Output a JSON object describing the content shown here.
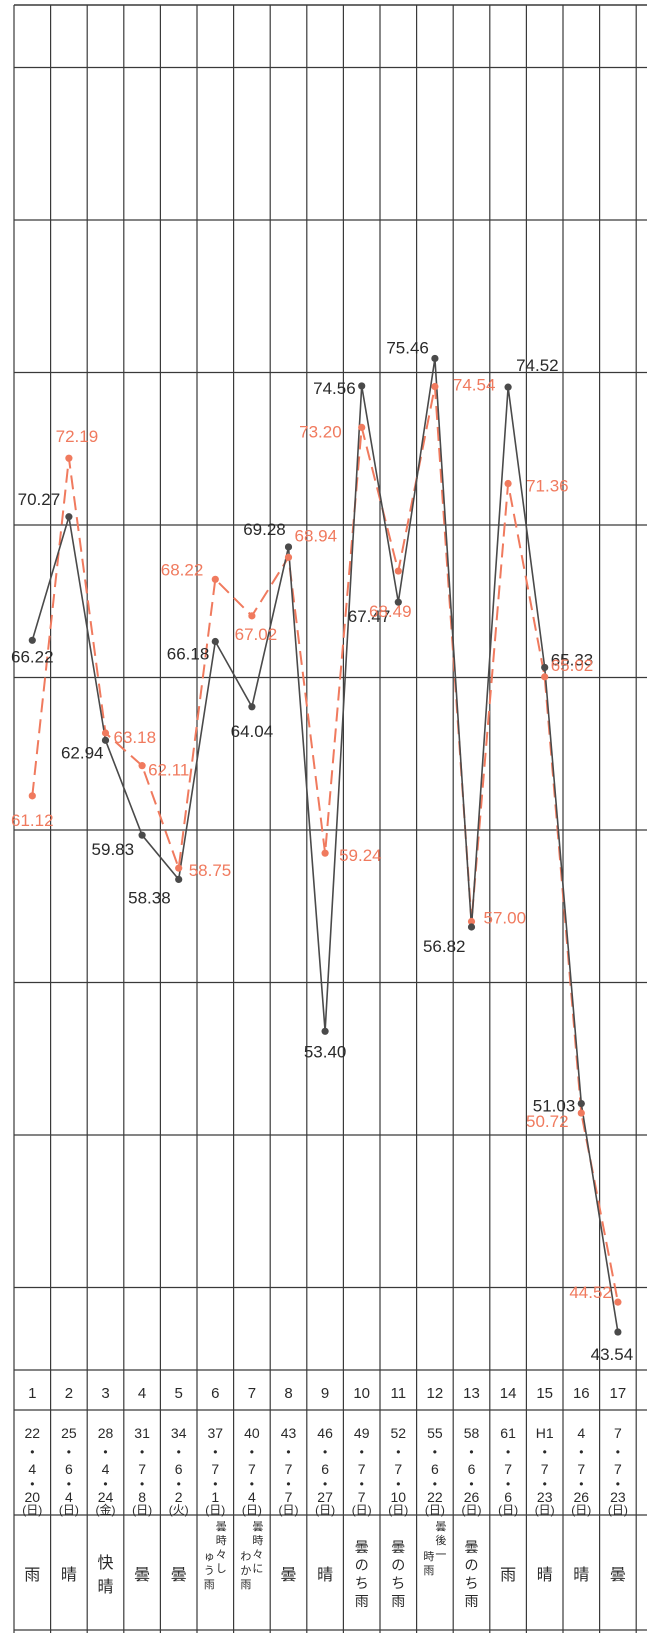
{
  "chart_data": {
    "type": "line",
    "categories": [
      "1",
      "2",
      "3",
      "4",
      "5",
      "6",
      "7",
      "8",
      "9",
      "10",
      "11",
      "12",
      "13",
      "14",
      "15",
      "16",
      "17"
    ],
    "dates": [
      [
        "22",
        "4",
        "20",
        "(日)"
      ],
      [
        "25",
        "6",
        "4",
        "(日)"
      ],
      [
        "28",
        "4",
        "24",
        "(金)"
      ],
      [
        "31",
        "7",
        "8",
        "(日)"
      ],
      [
        "34",
        "6",
        "2",
        "(火)"
      ],
      [
        "37",
        "7",
        "1",
        "(日)"
      ],
      [
        "40",
        "7",
        "4",
        "(日)"
      ],
      [
        "43",
        "7",
        "7",
        "(日)"
      ],
      [
        "46",
        "6",
        "27",
        "(日)"
      ],
      [
        "49",
        "7",
        "7",
        "(日)"
      ],
      [
        "52",
        "7",
        "10",
        "(日)"
      ],
      [
        "55",
        "6",
        "22",
        "(日)"
      ],
      [
        "58",
        "6",
        "26",
        "(日)"
      ],
      [
        "61",
        "7",
        "6",
        "(日)"
      ],
      [
        "H1",
        "7",
        "23",
        "(日)"
      ],
      [
        "4",
        "7",
        "26",
        "(日)"
      ],
      [
        "7",
        "7",
        "23",
        "(日)"
      ]
    ],
    "weather": [
      "雨",
      "晴",
      "快晴",
      "曇",
      "曇",
      "曇時々しゅう雨",
      "曇時々にわか雨",
      "曇",
      "晴",
      "曇のち雨",
      "曇のち雨",
      "曇後一時雨",
      "曇のち雨",
      "雨",
      "晴",
      "晴",
      "曇"
    ],
    "series": [
      {
        "values": [
          66.22,
          70.27,
          62.94,
          59.83,
          58.38,
          66.18,
          64.04,
          69.28,
          53.4,
          74.56,
          67.47,
          75.46,
          56.82,
          74.52,
          65.33,
          51.03,
          43.54
        ],
        "labels": [
          "66.22",
          "70.27",
          "62.94",
          "59.83",
          "58.38",
          "66.18",
          "64.04",
          "69.28",
          "53.40",
          "74.56",
          "67.47",
          "75.46",
          "56.82",
          "74.52",
          "65.33",
          "51.03",
          "43.54"
        ]
      },
      {
        "values": [
          61.12,
          72.19,
          63.18,
          62.11,
          58.75,
          68.22,
          67.02,
          68.94,
          59.24,
          73.2,
          68.49,
          74.54,
          57.0,
          71.36,
          65.02,
          50.72,
          44.52
        ],
        "labels": [
          "61.12",
          "72.19",
          "63.18",
          "62.11",
          "58.75",
          "68.22",
          "67.02",
          "68.94",
          "59.24",
          "73.20",
          "68.49",
          "74.54",
          "57.00",
          "71.36",
          "65.02",
          "50.72",
          "44.52"
        ]
      }
    ],
    "ylim": [
      40,
      85
    ],
    "grid": true,
    "colors": {
      "series1": "#4a4a4a",
      "series2": "#f07a5e",
      "grid": "#3a3a3a"
    }
  }
}
